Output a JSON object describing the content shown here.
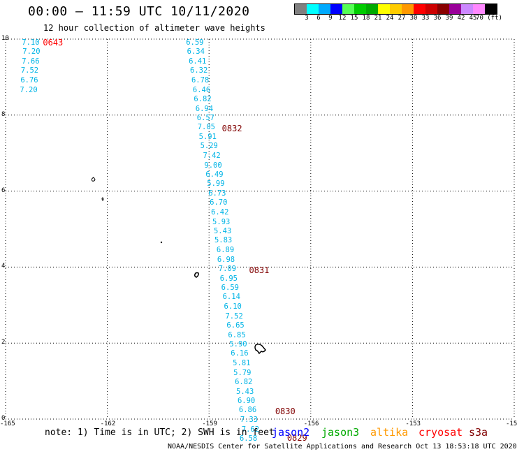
{
  "header": {
    "title": "00:00 – 11:59 UTC 10/11/2020",
    "subtitle": "12 hour collection of altimeter wave heights"
  },
  "colorbar": {
    "colors": [
      "#808080",
      "#00ffff",
      "#00aaff",
      "#0000ff",
      "#55ff55",
      "#00cc00",
      "#00aa00",
      "#ffff00",
      "#ffcc00",
      "#ff9900",
      "#ff0000",
      "#cc0000",
      "#880000",
      "#990099",
      "#cc88ff",
      "#ff88ff",
      "#000000"
    ],
    "labels": [
      "3",
      "6",
      "9",
      "12",
      "15",
      "18",
      "21",
      "24",
      "27",
      "30",
      "33",
      "36",
      "39",
      "42",
      "45",
      "70 (ft)"
    ]
  },
  "axes": {
    "y_ticks": [
      "10",
      "8",
      "6",
      "4",
      "2",
      "0"
    ],
    "x_ticks": [
      "-165",
      "-162",
      "-159",
      "-156",
      "-153",
      "-15"
    ]
  },
  "map_data": {
    "lon_range": [
      -165,
      -150
    ],
    "lat_range": [
      0,
      10
    ],
    "wave_values": [
      {
        "v": "7.10",
        "lon": -164.52,
        "lat": 9.9
      },
      {
        "v": "7.20",
        "lon": -164.5,
        "lat": 9.66
      },
      {
        "v": "7.66",
        "lon": -164.52,
        "lat": 9.41
      },
      {
        "v": "7.52",
        "lon": -164.55,
        "lat": 9.17
      },
      {
        "v": "6.76",
        "lon": -164.56,
        "lat": 8.92
      },
      {
        "v": "7.20",
        "lon": -164.58,
        "lat": 8.66
      },
      {
        "v": "6.59",
        "lon": -159.68,
        "lat": 9.9
      },
      {
        "v": "6.34",
        "lon": -159.65,
        "lat": 9.66
      },
      {
        "v": "6.41",
        "lon": -159.6,
        "lat": 9.41
      },
      {
        "v": "6.32",
        "lon": -159.56,
        "lat": 9.17
      },
      {
        "v": "6.78",
        "lon": -159.52,
        "lat": 8.92
      },
      {
        "v": "6.46",
        "lon": -159.48,
        "lat": 8.66
      },
      {
        "v": "6.82",
        "lon": -159.45,
        "lat": 8.42
      },
      {
        "v": "6.94",
        "lon": -159.4,
        "lat": 8.17
      },
      {
        "v": "6.57",
        "lon": -159.36,
        "lat": 7.92
      },
      {
        "v": "7.05",
        "lon": -159.34,
        "lat": 7.68
      },
      {
        "v": "5.91",
        "lon": -159.3,
        "lat": 7.43
      },
      {
        "v": "5.29",
        "lon": -159.26,
        "lat": 7.18
      },
      {
        "v": "7.42",
        "lon": -159.18,
        "lat": 6.93
      },
      {
        "v": "9.00",
        "lon": -159.14,
        "lat": 6.68
      },
      {
        "v": "6.49",
        "lon": -159.1,
        "lat": 6.44
      },
      {
        "v": "5.99",
        "lon": -159.06,
        "lat": 6.19
      },
      {
        "v": "6.73",
        "lon": -159.02,
        "lat": 5.94
      },
      {
        "v": "6.70",
        "lon": -158.98,
        "lat": 5.69
      },
      {
        "v": "6.42",
        "lon": -158.94,
        "lat": 5.44
      },
      {
        "v": "5.93",
        "lon": -158.9,
        "lat": 5.19
      },
      {
        "v": "5.43",
        "lon": -158.86,
        "lat": 4.95
      },
      {
        "v": "5.83",
        "lon": -158.84,
        "lat": 4.7
      },
      {
        "v": "6.89",
        "lon": -158.78,
        "lat": 4.45
      },
      {
        "v": "6.98",
        "lon": -158.76,
        "lat": 4.2
      },
      {
        "v": "7.09",
        "lon": -158.72,
        "lat": 3.95
      },
      {
        "v": "6.95",
        "lon": -158.68,
        "lat": 3.7
      },
      {
        "v": "6.59",
        "lon": -158.64,
        "lat": 3.46
      },
      {
        "v": "6.14",
        "lon": -158.6,
        "lat": 3.21
      },
      {
        "v": "6.10",
        "lon": -158.56,
        "lat": 2.96
      },
      {
        "v": "7.52",
        "lon": -158.52,
        "lat": 2.71
      },
      {
        "v": "6.65",
        "lon": -158.48,
        "lat": 2.46
      },
      {
        "v": "6.85",
        "lon": -158.44,
        "lat": 2.21
      },
      {
        "v": "5.90",
        "lon": -158.4,
        "lat": 1.96
      },
      {
        "v": "6.16",
        "lon": -158.36,
        "lat": 1.72
      },
      {
        "v": "5.81",
        "lon": -158.3,
        "lat": 1.47
      },
      {
        "v": "5.79",
        "lon": -158.28,
        "lat": 1.22
      },
      {
        "v": "6.82",
        "lon": -158.24,
        "lat": 0.97
      },
      {
        "v": "5.43",
        "lon": -158.2,
        "lat": 0.72
      },
      {
        "v": "6.90",
        "lon": -158.16,
        "lat": 0.48
      },
      {
        "v": "6.86",
        "lon": -158.12,
        "lat": 0.23
      },
      {
        "v": "7.33",
        "lon": -158.08,
        "lat": -0.02
      },
      {
        "v": "7.62",
        "lon": -158.04,
        "lat": -0.27
      },
      {
        "v": "6.58",
        "lon": -158.1,
        "lat": -0.52
      }
    ],
    "time_labels": [
      {
        "t": "0643",
        "lon": -163.9,
        "lat": 9.9,
        "color": "#ff0000"
      },
      {
        "t": "0832",
        "lon": -158.62,
        "lat": 7.64,
        "color": "#800000"
      },
      {
        "t": "0831",
        "lon": -157.82,
        "lat": 3.92,
        "color": "#800000"
      },
      {
        "t": "0830",
        "lon": -157.05,
        "lat": 0.2,
        "color": "#800000"
      },
      {
        "t": "0829",
        "lon": -156.7,
        "lat": -0.5,
        "color": "#800000"
      }
    ]
  },
  "note": "note: 1) Time is in UTC; 2) SWH is in feet",
  "satellites": [
    {
      "name": "jason2",
      "color": "#0000ff"
    },
    {
      "name": "jason3",
      "color": "#00aa00"
    },
    {
      "name": "altika",
      "color": "#ff9900"
    },
    {
      "name": "cryosat",
      "color": "#ff0000"
    },
    {
      "name": "s3a",
      "color": "#800000"
    }
  ],
  "footer": "NOAA/NESDIS Center for Satellite Applications and Research   Oct 13 18:53:18 UTC 2020"
}
